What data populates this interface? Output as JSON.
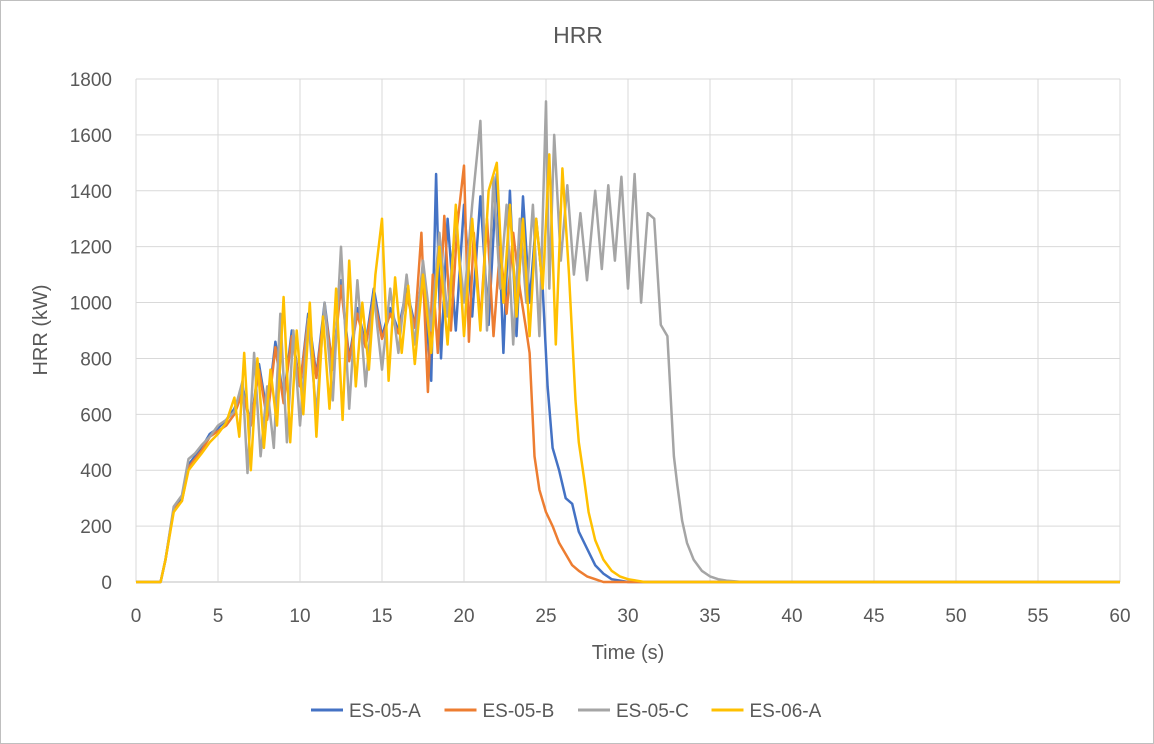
{
  "chart_data": {
    "type": "line",
    "title": "HRR",
    "xlabel": "Time (s)",
    "ylabel": "HRR (kW)",
    "xlim": [
      0,
      60
    ],
    "ylim": [
      0,
      1800
    ],
    "xticks": [
      0,
      5,
      10,
      15,
      20,
      25,
      30,
      35,
      40,
      45,
      50,
      55,
      60
    ],
    "yticks": [
      0,
      200,
      400,
      600,
      800,
      1000,
      1200,
      1400,
      1600,
      1800
    ],
    "grid": true,
    "legend_position": "bottom",
    "series": [
      {
        "name": "ES-05-A",
        "color": "#4472C4",
        "x": [
          0,
          1.5,
          1.8,
          2.3,
          2.8,
          3.2,
          3.6,
          4.0,
          4.5,
          5.0,
          5.5,
          6.0,
          6.5,
          7.0,
          7.5,
          8.0,
          8.5,
          9.0,
          9.5,
          10.0,
          10.5,
          11.0,
          11.5,
          12.0,
          12.5,
          13.0,
          13.5,
          14.0,
          14.5,
          15.0,
          15.5,
          16.0,
          16.5,
          17.0,
          17.5,
          18.0,
          18.3,
          18.6,
          19.0,
          19.5,
          20.0,
          20.5,
          21.0,
          21.5,
          22.0,
          22.4,
          22.8,
          23.2,
          23.6,
          24.0,
          24.4,
          24.8,
          25.1,
          25.4,
          25.8,
          26.2,
          26.6,
          27.0,
          27.5,
          28.0,
          28.5,
          29.0,
          29.5,
          30.0,
          31.0,
          33.0,
          40.0,
          50.0,
          60.0
        ],
        "values": [
          0,
          0,
          80,
          260,
          300,
          420,
          450,
          480,
          530,
          550,
          580,
          620,
          700,
          560,
          780,
          600,
          860,
          650,
          900,
          700,
          960,
          740,
          1000,
          760,
          1080,
          800,
          980,
          850,
          1050,
          880,
          980,
          900,
          1050,
          920,
          1100,
          720,
          1460,
          800,
          1300,
          900,
          1350,
          950,
          1380,
          920,
          1460,
          820,
          1400,
          880,
          1380,
          1000,
          1300,
          1050,
          700,
          480,
          400,
          300,
          280,
          180,
          120,
          60,
          30,
          10,
          5,
          0,
          0,
          0,
          0,
          0,
          0
        ]
      },
      {
        "name": "ES-05-B",
        "color": "#ED7D31",
        "x": [
          0,
          1.5,
          1.8,
          2.3,
          2.8,
          3.2,
          3.6,
          4.0,
          4.5,
          5.0,
          5.5,
          6.0,
          6.5,
          7.0,
          7.5,
          8.0,
          8.5,
          9.0,
          9.5,
          10.0,
          10.5,
          11.0,
          11.5,
          12.0,
          12.5,
          13.0,
          13.5,
          14.0,
          14.5,
          15.0,
          15.5,
          16.0,
          16.5,
          17.0,
          17.4,
          17.8,
          18.1,
          18.4,
          18.8,
          19.2,
          19.6,
          20.0,
          20.3,
          20.6,
          21.0,
          21.4,
          21.8,
          22.2,
          22.6,
          23.0,
          23.4,
          23.8,
          24.0,
          24.3,
          24.6,
          25.0,
          25.4,
          25.8,
          26.2,
          26.6,
          27.0,
          27.5,
          28.0,
          28.5,
          29.0,
          30.0,
          40.0,
          50.0,
          60.0
        ],
        "values": [
          0,
          0,
          80,
          260,
          290,
          410,
          440,
          470,
          520,
          540,
          560,
          600,
          680,
          560,
          760,
          580,
          840,
          640,
          880,
          700,
          940,
          730,
          980,
          760,
          1060,
          790,
          960,
          840,
          1020,
          870,
          960,
          890,
          1030,
          910,
          1250,
          680,
          1100,
          820,
          1310,
          900,
          1280,
          1490,
          860,
          1250,
          930,
          1300,
          880,
          1200,
          960,
          1250,
          1050,
          900,
          820,
          450,
          330,
          250,
          200,
          140,
          100,
          60,
          40,
          20,
          10,
          0,
          0,
          0,
          0,
          0,
          0
        ]
      },
      {
        "name": "ES-05-C",
        "color": "#A5A5A5",
        "x": [
          0,
          1.5,
          1.8,
          2.3,
          2.8,
          3.2,
          3.6,
          4.0,
          4.5,
          5.0,
          5.5,
          6.0,
          6.5,
          6.8,
          7.2,
          7.6,
          8.0,
          8.4,
          8.8,
          9.2,
          9.6,
          10.0,
          10.5,
          11.0,
          11.5,
          12.0,
          12.5,
          13.0,
          13.5,
          14.0,
          14.5,
          15.0,
          15.5,
          16.0,
          16.5,
          17.0,
          17.5,
          18.0,
          18.5,
          19.0,
          19.5,
          20.0,
          20.5,
          21.0,
          21.4,
          21.8,
          22.2,
          22.6,
          23.0,
          23.4,
          23.8,
          24.2,
          24.6,
          25.0,
          25.2,
          25.5,
          25.9,
          26.3,
          26.7,
          27.1,
          27.5,
          28.0,
          28.4,
          28.8,
          29.2,
          29.6,
          30.0,
          30.4,
          30.8,
          31.2,
          31.6,
          32.0,
          32.4,
          32.8,
          33.0,
          33.3,
          33.6,
          34.0,
          34.5,
          35.0,
          35.5,
          36.0,
          37.0,
          38.0,
          40.0,
          50.0,
          60.0
        ],
        "values": [
          0,
          0,
          80,
          270,
          310,
          440,
          460,
          490,
          520,
          560,
          580,
          610,
          720,
          390,
          820,
          450,
          700,
          480,
          960,
          500,
          900,
          560,
          940,
          600,
          1000,
          650,
          1200,
          620,
          1080,
          700,
          1030,
          760,
          1050,
          820,
          1100,
          850,
          1150,
          900,
          1250,
          950,
          1300,
          1000,
          1350,
          1650,
          900,
          1450,
          1050,
          1350,
          850,
          1300,
          1000,
          1350,
          880,
          1720,
          1050,
          1600,
          1150,
          1420,
          1100,
          1320,
          1080,
          1400,
          1120,
          1420,
          1150,
          1450,
          1050,
          1460,
          1000,
          1320,
          1300,
          920,
          880,
          450,
          350,
          220,
          140,
          80,
          40,
          20,
          10,
          5,
          0,
          0,
          0,
          0,
          0
        ]
      },
      {
        "name": "ES-06-A",
        "color": "#FFC000",
        "x": [
          0,
          1.5,
          1.8,
          2.3,
          2.8,
          3.2,
          3.6,
          4.0,
          4.5,
          5.0,
          5.5,
          6.0,
          6.3,
          6.6,
          7.0,
          7.4,
          7.8,
          8.2,
          8.6,
          9.0,
          9.4,
          9.8,
          10.2,
          10.6,
          11.0,
          11.4,
          11.8,
          12.2,
          12.6,
          13.0,
          13.4,
          13.8,
          14.2,
          14.6,
          15.0,
          15.4,
          15.8,
          16.2,
          16.6,
          17.0,
          17.5,
          18.0,
          18.5,
          19.0,
          19.5,
          20.0,
          20.5,
          21.0,
          21.5,
          22.0,
          22.4,
          22.8,
          23.2,
          23.6,
          24.0,
          24.4,
          24.8,
          25.2,
          25.6,
          26.0,
          26.4,
          26.8,
          27.0,
          27.3,
          27.6,
          28.0,
          28.5,
          29.0,
          29.5,
          30.0,
          31.0,
          32.0,
          40.0,
          50.0,
          60.0
        ],
        "values": [
          0,
          0,
          80,
          250,
          290,
          400,
          430,
          460,
          500,
          530,
          570,
          660,
          520,
          820,
          400,
          800,
          480,
          760,
          560,
          1020,
          500,
          900,
          600,
          1000,
          520,
          950,
          620,
          1050,
          580,
          1150,
          700,
          1000,
          760,
          1100,
          1300,
          720,
          1090,
          820,
          1060,
          780,
          1100,
          820,
          1200,
          850,
          1350,
          880,
          1300,
          900,
          1400,
          1500,
          1000,
          1350,
          950,
          1300,
          880,
          1300,
          1050,
          1530,
          850,
          1480,
          1100,
          650,
          500,
          380,
          250,
          150,
          80,
          40,
          20,
          10,
          0,
          0,
          0,
          0,
          0
        ]
      }
    ]
  }
}
